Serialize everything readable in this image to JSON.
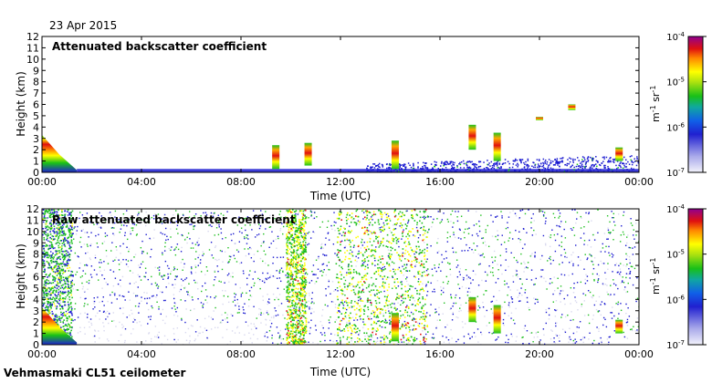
{
  "figure": {
    "date": "23 Apr 2015",
    "instrument": "Vehmasmaki CL51 ceilometer"
  },
  "colorbar": {
    "ticks": [
      "10-7",
      "10-6",
      "10-5",
      "10-4"
    ],
    "ticks_display": [
      {
        "base": "10",
        "exp": "-7"
      },
      {
        "base": "10",
        "exp": "-6"
      },
      {
        "base": "10",
        "exp": "-5"
      },
      {
        "base": "10",
        "exp": "-4"
      }
    ],
    "unit_base": "m",
    "unit_exp1": "-1",
    "unit_mid": " sr",
    "unit_exp2": "-1",
    "scale": "log",
    "range": [
      1e-07,
      0.0001
    ]
  },
  "colors": {
    "background": "#ffffff",
    "low_signal": "#d8d8ee",
    "blue": "#1a1ad0",
    "green": "#1fc01f",
    "yellow": "#ffff00",
    "red": "#e01010",
    "purple": "#a000a0"
  },
  "chart_data": [
    {
      "type": "heatmap",
      "title": "Attenuated backscatter coefficient",
      "xlabel": "Time (UTC)",
      "ylabel": "Height (km)",
      "x_ticks": [
        "00:00",
        "04:00",
        "08:00",
        "12:00",
        "16:00",
        "20:00",
        "00:00"
      ],
      "y_ticks": [
        "0",
        "1",
        "2",
        "3",
        "4",
        "5",
        "6",
        "7",
        "8",
        "9",
        "10",
        "11",
        "12"
      ],
      "xlim": [
        0,
        24
      ],
      "ylim": [
        0,
        12
      ],
      "features": [
        {
          "kind": "boundary_layer",
          "t": [
            0,
            1.4
          ],
          "top_km": [
            3.3,
            0.2
          ],
          "level": 0.55
        },
        {
          "kind": "surface_band",
          "t": [
            1.4,
            24
          ],
          "top_km": 0.3,
          "level": 0.2
        },
        {
          "kind": "low_haze",
          "t": [
            13,
            24
          ],
          "top_km": [
            0.8,
            1.6
          ],
          "level": 0.18
        },
        {
          "kind": "cloud",
          "t": 9.4,
          "z_km": [
            0.3,
            2.4
          ],
          "level": 0.7
        },
        {
          "kind": "cloud",
          "t": 10.7,
          "z_km": [
            0.6,
            2.6
          ],
          "level": 0.6
        },
        {
          "kind": "cloud",
          "t": 14.2,
          "z_km": [
            0.3,
            2.8
          ],
          "level": 0.85
        },
        {
          "kind": "cloud",
          "t": 17.3,
          "z_km": [
            2.0,
            4.2
          ],
          "level": 0.85
        },
        {
          "kind": "cloud",
          "t": 18.3,
          "z_km": [
            1.0,
            3.5
          ],
          "level": 0.85
        },
        {
          "kind": "cloud",
          "t": 20.0,
          "z_km": [
            4.6,
            4.9
          ],
          "level": 0.6
        },
        {
          "kind": "cloud",
          "t": 21.3,
          "z_km": [
            5.5,
            6.0
          ],
          "level": 0.7
        },
        {
          "kind": "cloud",
          "t": 23.2,
          "z_km": [
            1.0,
            2.2
          ],
          "level": 0.85
        }
      ]
    },
    {
      "type": "heatmap",
      "title": "Raw attenuated backscatter coefficient",
      "xlabel": "Time (UTC)",
      "ylabel": "Height (km)",
      "x_ticks": [
        "00:00",
        "04:00",
        "08:00",
        "12:00",
        "16:00",
        "20:00",
        "00:00"
      ],
      "y_ticks": [
        "0",
        "1",
        "2",
        "3",
        "4",
        "5",
        "6",
        "7",
        "8",
        "9",
        "10",
        "11",
        "12"
      ],
      "xlim": [
        0,
        24
      ],
      "ylim": [
        0,
        12
      ],
      "features": [
        {
          "kind": "noise_field",
          "t": [
            0,
            24
          ],
          "level": 0.3
        },
        {
          "kind": "noisy_column",
          "t": [
            0,
            1.2
          ],
          "level": 0.5
        },
        {
          "kind": "noisy_column",
          "t": [
            9.8,
            10.6
          ],
          "level": 0.65
        },
        {
          "kind": "noisy_column",
          "t": [
            11.8,
            15.5
          ],
          "level": 0.65
        },
        {
          "kind": "boundary_layer",
          "t": [
            0,
            1.4
          ],
          "top_km": [
            3.3,
            0.2
          ],
          "level": 0.55
        },
        {
          "kind": "cloud",
          "t": 14.2,
          "z_km": [
            0.3,
            2.8
          ],
          "level": 0.85
        },
        {
          "kind": "cloud",
          "t": 17.3,
          "z_km": [
            2.0,
            4.2
          ],
          "level": 0.85
        },
        {
          "kind": "cloud",
          "t": 18.3,
          "z_km": [
            1.0,
            3.5
          ],
          "level": 0.85
        },
        {
          "kind": "cloud",
          "t": 23.2,
          "z_km": [
            1.0,
            2.2
          ],
          "level": 0.85
        }
      ]
    }
  ]
}
